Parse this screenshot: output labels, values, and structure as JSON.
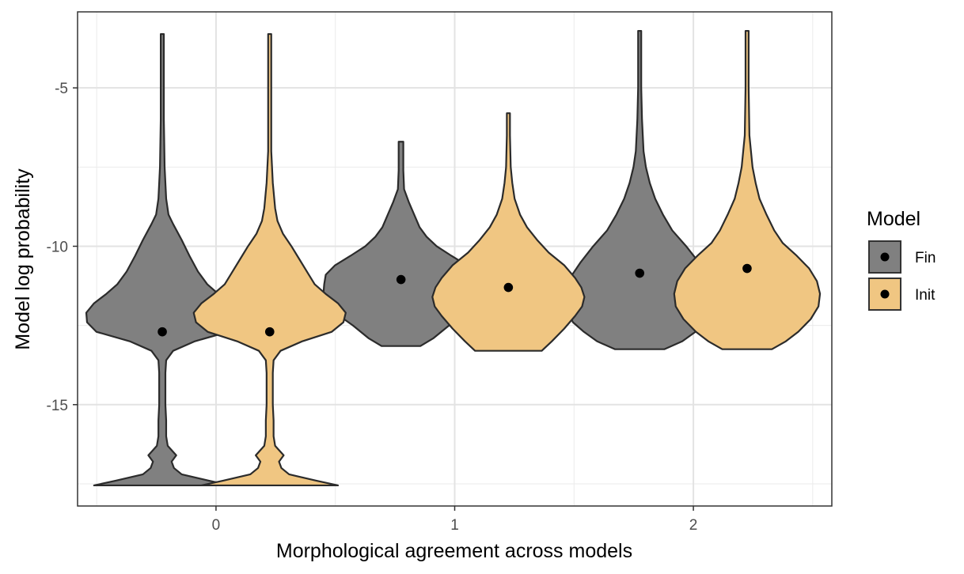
{
  "chart_data": {
    "type": "violin",
    "title": "",
    "xlabel": "Morphological agreement across models",
    "ylabel": "Model log probability",
    "categories": [
      "0",
      "1",
      "2"
    ],
    "ylim": [
      -18.2,
      -2.6
    ],
    "yticks": [
      -15,
      -10,
      -5
    ],
    "ytick_labels": [
      "-15",
      "-10",
      "-5"
    ],
    "grid": true,
    "legend": {
      "title": "Model",
      "position": "right",
      "entries": [
        {
          "name": "Fin",
          "color": "#808080"
        },
        {
          "name": "Init",
          "color": "#f0c682"
        }
      ]
    },
    "series": [
      {
        "name": "Fin",
        "color": "#808080",
        "groups": [
          {
            "category": "0",
            "min": -17.55,
            "max": -3.3,
            "median": -12.7,
            "profile": [
              [
                -17.55,
                0.88
              ],
              [
                -17.4,
                0.6
              ],
              [
                -17.2,
                0.25
              ],
              [
                -17.0,
                0.15
              ],
              [
                -16.8,
                0.12
              ],
              [
                -16.6,
                0.18
              ],
              [
                -16.3,
                0.07
              ],
              [
                -16.0,
                0.05
              ],
              [
                -15.5,
                0.05
              ],
              [
                -15.0,
                0.04
              ],
              [
                -14.5,
                0.04
              ],
              [
                -14.0,
                0.04
              ],
              [
                -13.6,
                0.05
              ],
              [
                -13.3,
                0.14
              ],
              [
                -13.0,
                0.42
              ],
              [
                -12.7,
                0.85
              ],
              [
                -12.4,
                0.97
              ],
              [
                -12.1,
                0.98
              ],
              [
                -11.8,
                0.88
              ],
              [
                -11.5,
                0.72
              ],
              [
                -11.2,
                0.58
              ],
              [
                -10.8,
                0.46
              ],
              [
                -10.3,
                0.35
              ],
              [
                -9.8,
                0.25
              ],
              [
                -9.3,
                0.14
              ],
              [
                -9.0,
                0.08
              ],
              [
                -8.5,
                0.05
              ],
              [
                -7.5,
                0.03
              ],
              [
                -6.0,
                0.02
              ],
              [
                -5.0,
                0.02
              ],
              [
                -3.3,
                0.02
              ]
            ]
          },
          {
            "category": "1",
            "min": -13.15,
            "max": -6.7,
            "median": -11.05,
            "profile": [
              [
                -13.15,
                0.25
              ],
              [
                -12.9,
                0.42
              ],
              [
                -12.5,
                0.62
              ],
              [
                -12.1,
                0.85
              ],
              [
                -11.8,
                0.97
              ],
              [
                -11.5,
                1.0
              ],
              [
                -11.2,
                0.99
              ],
              [
                -10.9,
                0.97
              ],
              [
                -10.6,
                0.85
              ],
              [
                -10.3,
                0.65
              ],
              [
                -10.0,
                0.46
              ],
              [
                -9.7,
                0.33
              ],
              [
                -9.4,
                0.24
              ],
              [
                -9.0,
                0.17
              ],
              [
                -8.6,
                0.1
              ],
              [
                -8.2,
                0.04
              ],
              [
                -7.6,
                0.03
              ],
              [
                -6.7,
                0.03
              ]
            ]
          },
          {
            "category": "2",
            "min": -13.25,
            "max": -3.2,
            "median": -10.85,
            "profile": [
              [
                -13.25,
                0.32
              ],
              [
                -13.0,
                0.55
              ],
              [
                -12.7,
                0.72
              ],
              [
                -12.4,
                0.86
              ],
              [
                -12.1,
                0.92
              ],
              [
                -11.7,
                0.94
              ],
              [
                -11.3,
                0.92
              ],
              [
                -10.9,
                0.87
              ],
              [
                -10.5,
                0.76
              ],
              [
                -10.0,
                0.6
              ],
              [
                -9.5,
                0.42
              ],
              [
                -9.0,
                0.3
              ],
              [
                -8.5,
                0.2
              ],
              [
                -8.0,
                0.13
              ],
              [
                -7.5,
                0.08
              ],
              [
                -7.0,
                0.05
              ],
              [
                -6.0,
                0.03
              ],
              [
                -5.0,
                0.02
              ],
              [
                -3.2,
                0.02
              ]
            ]
          }
        ]
      },
      {
        "name": "Init",
        "color": "#f0c682",
        "groups": [
          {
            "category": "0",
            "min": -17.55,
            "max": -3.3,
            "median": -12.7,
            "profile": [
              [
                -17.55,
                0.88
              ],
              [
                -17.4,
                0.6
              ],
              [
                -17.2,
                0.25
              ],
              [
                -17.0,
                0.15
              ],
              [
                -16.8,
                0.12
              ],
              [
                -16.6,
                0.18
              ],
              [
                -16.3,
                0.07
              ],
              [
                -16.0,
                0.05
              ],
              [
                -15.5,
                0.05
              ],
              [
                -15.0,
                0.04
              ],
              [
                -14.5,
                0.04
              ],
              [
                -14.0,
                0.04
              ],
              [
                -13.6,
                0.05
              ],
              [
                -13.3,
                0.14
              ],
              [
                -13.0,
                0.42
              ],
              [
                -12.7,
                0.8
              ],
              [
                -12.4,
                0.95
              ],
              [
                -12.1,
                0.98
              ],
              [
                -11.8,
                0.88
              ],
              [
                -11.5,
                0.72
              ],
              [
                -11.2,
                0.58
              ],
              [
                -10.8,
                0.48
              ],
              [
                -10.4,
                0.38
              ],
              [
                -10.0,
                0.28
              ],
              [
                -9.6,
                0.17
              ],
              [
                -9.2,
                0.1
              ],
              [
                -8.8,
                0.07
              ],
              [
                -8.0,
                0.04
              ],
              [
                -7.0,
                0.02
              ],
              [
                -5.0,
                0.02
              ],
              [
                -3.3,
                0.02
              ]
            ]
          },
          {
            "category": "1",
            "min": -13.3,
            "max": -5.8,
            "median": -11.3,
            "profile": [
              [
                -13.3,
                0.43
              ],
              [
                -13.0,
                0.56
              ],
              [
                -12.6,
                0.72
              ],
              [
                -12.2,
                0.86
              ],
              [
                -11.9,
                0.95
              ],
              [
                -11.6,
                0.98
              ],
              [
                -11.3,
                0.94
              ],
              [
                -11.0,
                0.86
              ],
              [
                -10.6,
                0.72
              ],
              [
                -10.2,
                0.52
              ],
              [
                -9.8,
                0.37
              ],
              [
                -9.4,
                0.24
              ],
              [
                -9.0,
                0.15
              ],
              [
                -8.5,
                0.08
              ],
              [
                -8.0,
                0.05
              ],
              [
                -7.5,
                0.03
              ],
              [
                -6.5,
                0.02
              ],
              [
                -5.8,
                0.02
              ]
            ]
          },
          {
            "category": "2",
            "min": -13.25,
            "max": -3.2,
            "median": -10.7,
            "profile": [
              [
                -13.25,
                0.32
              ],
              [
                -13.0,
                0.5
              ],
              [
                -12.7,
                0.66
              ],
              [
                -12.3,
                0.82
              ],
              [
                -11.9,
                0.92
              ],
              [
                -11.5,
                0.94
              ],
              [
                -11.1,
                0.9
              ],
              [
                -10.7,
                0.8
              ],
              [
                -10.3,
                0.64
              ],
              [
                -9.9,
                0.46
              ],
              [
                -9.5,
                0.35
              ],
              [
                -9.0,
                0.25
              ],
              [
                -8.5,
                0.16
              ],
              [
                -8.0,
                0.11
              ],
              [
                -7.5,
                0.07
              ],
              [
                -7.0,
                0.05
              ],
              [
                -6.5,
                0.03
              ],
              [
                -5.0,
                0.02
              ],
              [
                -3.2,
                0.02
              ]
            ]
          }
        ]
      }
    ]
  }
}
